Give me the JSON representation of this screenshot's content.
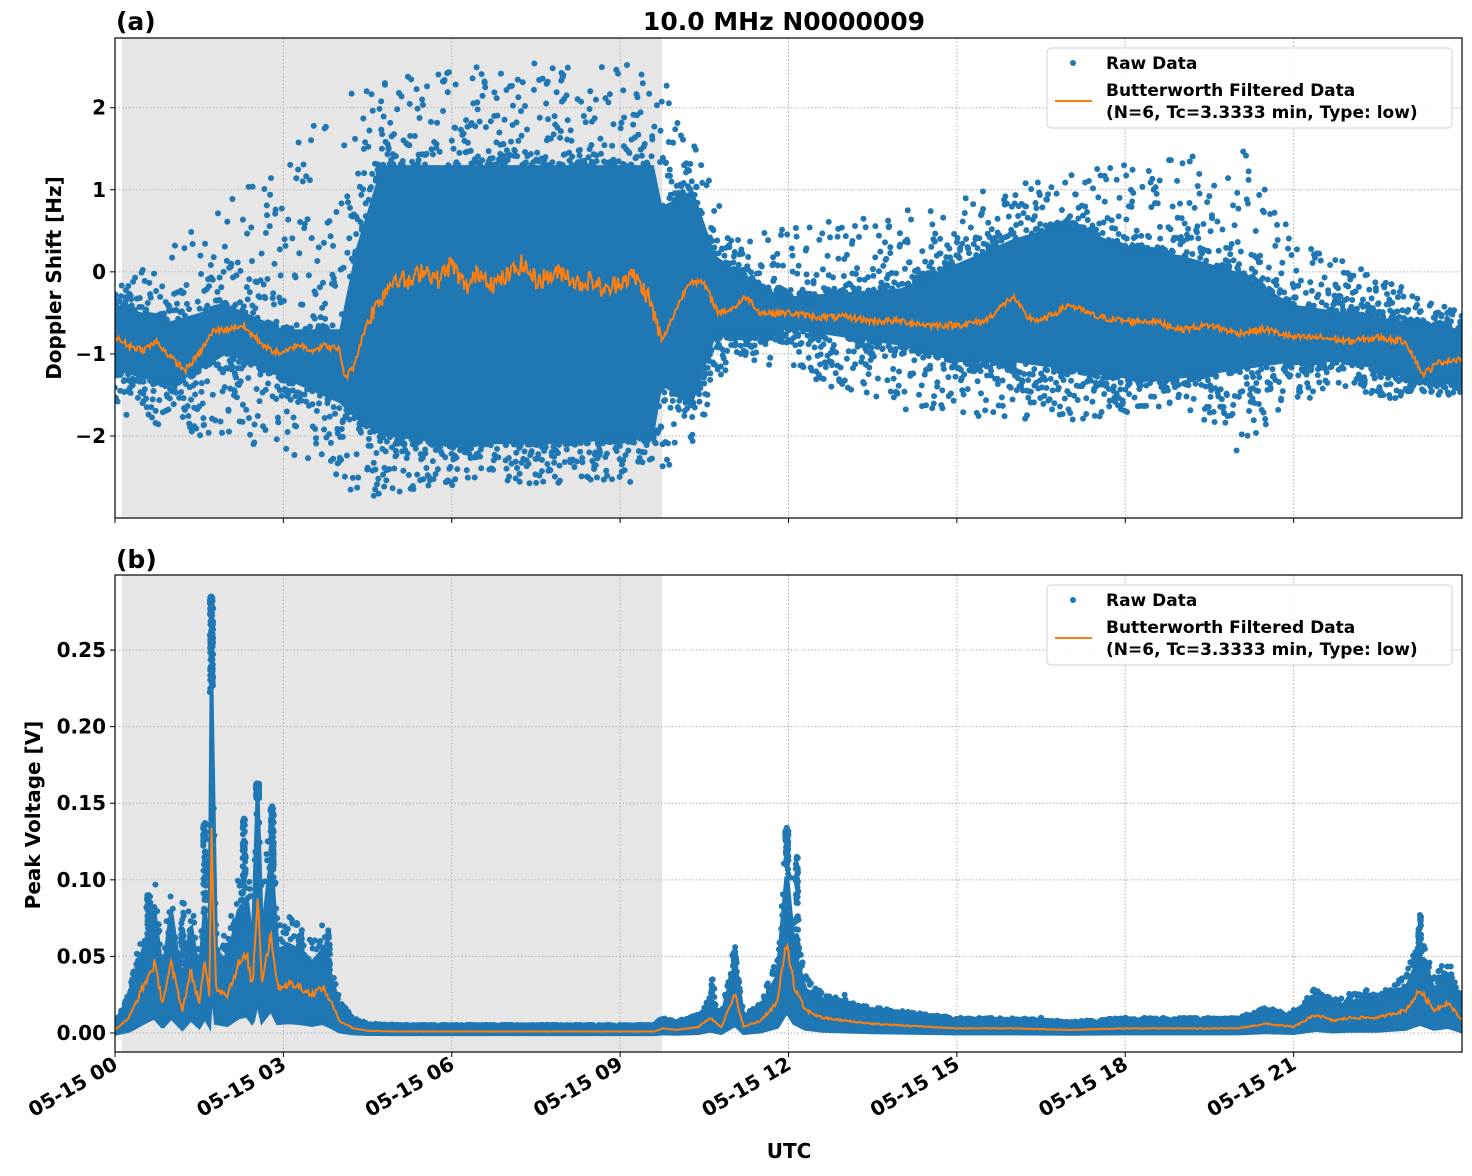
{
  "title": "10.0 MHz N0000009",
  "xlabel": "UTC",
  "x_tick_labels": [
    "05-15 00",
    "05-15 03",
    "05-15 06",
    "05-15 09",
    "05-15 12",
    "05-15 15",
    "05-15 18",
    "05-15 21"
  ],
  "colors": {
    "raw": "#1f77b4",
    "filtered": "#ff7f0e",
    "shade": "#e6e6e6"
  },
  "legend": {
    "raw": "Raw Data",
    "filtered_line1": "Butterworth Filtered Data",
    "filtered_line2": "(N=6, Tc=3.3333 min, Type: low)",
    "placement": "top-right"
  },
  "chart_data": [
    {
      "panel_label": "(a)",
      "type": "scatter+line",
      "ylabel": "Doppler Shift [Hz]",
      "x_unit": "hours UTC on 05-15",
      "xlim": [
        0,
        24
      ],
      "ylim": [
        -3.0,
        2.85
      ],
      "y_ticks": [
        -2,
        -1,
        0,
        1,
        2
      ],
      "y_tick_labels": [
        "−2",
        "−1",
        "0",
        "1",
        "2"
      ],
      "grid": true,
      "shaded_interval": [
        0.12,
        9.75
      ],
      "filtered": [
        [
          0,
          -0.8
        ],
        [
          0.25,
          -0.9
        ],
        [
          0.5,
          -0.95
        ],
        [
          0.75,
          -0.85
        ],
        [
          1,
          -1.05
        ],
        [
          1.25,
          -1.2
        ],
        [
          1.5,
          -1.0
        ],
        [
          1.75,
          -0.72
        ],
        [
          2,
          -0.7
        ],
        [
          2.25,
          -0.65
        ],
        [
          2.5,
          -0.8
        ],
        [
          2.75,
          -0.95
        ],
        [
          3,
          -1.0
        ],
        [
          3.25,
          -0.88
        ],
        [
          3.5,
          -0.95
        ],
        [
          3.75,
          -0.9
        ],
        [
          4,
          -0.95
        ],
        [
          4.1,
          -1.3
        ],
        [
          4.25,
          -1.15
        ],
        [
          4.5,
          -0.6
        ],
        [
          4.75,
          -0.3
        ],
        [
          5,
          -0.05
        ],
        [
          5.25,
          -0.15
        ],
        [
          5.5,
          0.05
        ],
        [
          5.75,
          -0.1
        ],
        [
          6,
          0.1
        ],
        [
          6.25,
          -0.2
        ],
        [
          6.5,
          0.0
        ],
        [
          6.75,
          -0.15
        ],
        [
          7,
          -0.05
        ],
        [
          7.25,
          0.1
        ],
        [
          7.5,
          -0.1
        ],
        [
          7.75,
          -0.05
        ],
        [
          8,
          0.0
        ],
        [
          8.25,
          -0.15
        ],
        [
          8.5,
          -0.1
        ],
        [
          8.75,
          -0.25
        ],
        [
          9,
          -0.1
        ],
        [
          9.25,
          -0.05
        ],
        [
          9.5,
          -0.3
        ],
        [
          9.75,
          -0.85
        ],
        [
          10,
          -0.45
        ],
        [
          10.25,
          -0.1
        ],
        [
          10.5,
          -0.15
        ],
        [
          10.75,
          -0.5
        ],
        [
          11,
          -0.45
        ],
        [
          11.25,
          -0.3
        ],
        [
          11.5,
          -0.5
        ],
        [
          12,
          -0.5
        ],
        [
          12.5,
          -0.55
        ],
        [
          13,
          -0.55
        ],
        [
          13.5,
          -0.6
        ],
        [
          14,
          -0.6
        ],
        [
          14.5,
          -0.65
        ],
        [
          15,
          -0.65
        ],
        [
          15.5,
          -0.6
        ],
        [
          16,
          -0.3
        ],
        [
          16.25,
          -0.55
        ],
        [
          16.5,
          -0.6
        ],
        [
          17,
          -0.4
        ],
        [
          17.5,
          -0.55
        ],
        [
          18,
          -0.6
        ],
        [
          18.5,
          -0.6
        ],
        [
          19,
          -0.7
        ],
        [
          19.5,
          -0.65
        ],
        [
          20,
          -0.75
        ],
        [
          20.5,
          -0.7
        ],
        [
          21,
          -0.8
        ],
        [
          21.5,
          -0.8
        ],
        [
          22,
          -0.85
        ],
        [
          22.5,
          -0.8
        ],
        [
          23,
          -0.85
        ],
        [
          23.3,
          -1.25
        ],
        [
          23.6,
          -1.1
        ],
        [
          24,
          -1.05
        ]
      ],
      "raw_spread": [
        [
          0,
          -1.2,
          -0.4
        ],
        [
          1,
          -1.4,
          -0.6
        ],
        [
          2,
          -1.0,
          -0.4
        ],
        [
          3,
          -1.3,
          -0.7
        ],
        [
          4,
          -1.6,
          -0.7
        ],
        [
          4.3,
          -1.8,
          0.3
        ],
        [
          4.75,
          -2.0,
          1.3
        ],
        [
          6,
          -2.1,
          1.3
        ],
        [
          8,
          -2.1,
          1.3
        ],
        [
          9.6,
          -2.0,
          1.3
        ],
        [
          9.75,
          -1.4,
          0.8
        ],
        [
          10.3,
          -1.6,
          1.0
        ],
        [
          10.7,
          -0.8,
          0.2
        ],
        [
          11.5,
          -0.8,
          -0.2
        ],
        [
          12,
          -0.7,
          -0.3
        ],
        [
          14,
          -0.9,
          -0.2
        ],
        [
          15,
          -1.1,
          0.1
        ],
        [
          16,
          -1.1,
          0.4
        ],
        [
          17,
          -1.2,
          0.6
        ],
        [
          18,
          -1.3,
          0.3
        ],
        [
          19,
          -1.3,
          0.2
        ],
        [
          20,
          -1.2,
          0.0
        ],
        [
          21,
          -1.1,
          -0.4
        ],
        [
          22,
          -1.1,
          -0.5
        ],
        [
          23,
          -1.3,
          -0.6
        ],
        [
          24,
          -1.4,
          -0.7
        ]
      ],
      "raw_outlier_range": [
        [
          0,
          -1.7,
          -0.2
        ],
        [
          4.5,
          -2.75,
          2.35
        ],
        [
          6,
          -2.6,
          2.55
        ],
        [
          8,
          -2.6,
          2.55
        ],
        [
          9.6,
          -2.55,
          2.6
        ],
        [
          10.3,
          -2.1,
          1.6
        ],
        [
          11,
          -1.0,
          0.4
        ],
        [
          14,
          -1.7,
          0.8
        ],
        [
          17,
          -1.85,
          1.25
        ],
        [
          19,
          -1.6,
          1.4
        ],
        [
          20,
          -2.2,
          1.65
        ],
        [
          21,
          -1.6,
          0.4
        ],
        [
          24,
          -1.5,
          -0.5
        ]
      ]
    },
    {
      "panel_label": "(b)",
      "type": "scatter+line",
      "ylabel": "Peak Voltage [V]",
      "x_unit": "hours UTC on 05-15",
      "xlim": [
        0,
        24
      ],
      "ylim": [
        -0.0124,
        0.299
      ],
      "y_ticks": [
        0,
        0.05,
        0.1,
        0.15,
        0.2,
        0.25
      ],
      "y_tick_labels": [
        "0.00",
        "0.05",
        "0.10",
        "0.15",
        "0.20",
        "0.25"
      ],
      "grid": true,
      "shaded_interval": [
        0.12,
        9.75
      ],
      "filtered": [
        [
          0,
          0.002
        ],
        [
          0.25,
          0.01
        ],
        [
          0.5,
          0.03
        ],
        [
          0.7,
          0.045
        ],
        [
          0.85,
          0.02
        ],
        [
          1.0,
          0.045
        ],
        [
          1.2,
          0.015
        ],
        [
          1.35,
          0.04
        ],
        [
          1.5,
          0.02
        ],
        [
          1.6,
          0.045
        ],
        [
          1.68,
          0.025
        ],
        [
          1.72,
          0.13
        ],
        [
          1.8,
          0.03
        ],
        [
          2.0,
          0.025
        ],
        [
          2.2,
          0.045
        ],
        [
          2.35,
          0.05
        ],
        [
          2.45,
          0.03
        ],
        [
          2.54,
          0.09
        ],
        [
          2.62,
          0.035
        ],
        [
          2.78,
          0.065
        ],
        [
          2.9,
          0.03
        ],
        [
          3.1,
          0.032
        ],
        [
          3.3,
          0.03
        ],
        [
          3.5,
          0.025
        ],
        [
          3.7,
          0.03
        ],
        [
          3.85,
          0.02
        ],
        [
          4.0,
          0.008
        ],
        [
          4.25,
          0.003
        ],
        [
          4.5,
          0.0015
        ],
        [
          5,
          0.001
        ],
        [
          9.6,
          0.001
        ],
        [
          9.75,
          0.003
        ],
        [
          10,
          0.002
        ],
        [
          10.4,
          0.004
        ],
        [
          10.6,
          0.01
        ],
        [
          10.8,
          0.004
        ],
        [
          11.05,
          0.025
        ],
        [
          11.2,
          0.004
        ],
        [
          11.5,
          0.008
        ],
        [
          11.8,
          0.02
        ],
        [
          11.97,
          0.06
        ],
        [
          12.1,
          0.03
        ],
        [
          12.3,
          0.015
        ],
        [
          12.6,
          0.01
        ],
        [
          13,
          0.008
        ],
        [
          13.5,
          0.006
        ],
        [
          14,
          0.005
        ],
        [
          14.5,
          0.004
        ],
        [
          15,
          0.003
        ],
        [
          16,
          0.003
        ],
        [
          17,
          0.002
        ],
        [
          18,
          0.003
        ],
        [
          19,
          0.003
        ],
        [
          20,
          0.003
        ],
        [
          20.5,
          0.006
        ],
        [
          21,
          0.004
        ],
        [
          21.4,
          0.012
        ],
        [
          21.7,
          0.008
        ],
        [
          22,
          0.01
        ],
        [
          22.5,
          0.01
        ],
        [
          23,
          0.015
        ],
        [
          23.25,
          0.028
        ],
        [
          23.5,
          0.015
        ],
        [
          23.75,
          0.02
        ],
        [
          24,
          0.008
        ]
      ],
      "raw_peaks": [
        [
          0.6,
          0.09
        ],
        [
          1.2,
          0.085
        ],
        [
          1.6,
          0.137
        ],
        [
          1.72,
          0.285
        ],
        [
          2.3,
          0.14
        ],
        [
          2.54,
          0.163
        ],
        [
          2.8,
          0.148
        ],
        [
          3.3,
          0.063
        ],
        [
          3.8,
          0.067
        ],
        [
          10.65,
          0.035
        ],
        [
          11.05,
          0.053
        ],
        [
          11.97,
          0.134
        ],
        [
          12.15,
          0.115
        ],
        [
          13,
          0.025
        ],
        [
          16.5,
          0.01
        ],
        [
          18,
          0.01
        ],
        [
          21,
          0.015
        ],
        [
          21.5,
          0.025
        ],
        [
          22.3,
          0.028
        ],
        [
          23.25,
          0.077
        ]
      ]
    }
  ]
}
